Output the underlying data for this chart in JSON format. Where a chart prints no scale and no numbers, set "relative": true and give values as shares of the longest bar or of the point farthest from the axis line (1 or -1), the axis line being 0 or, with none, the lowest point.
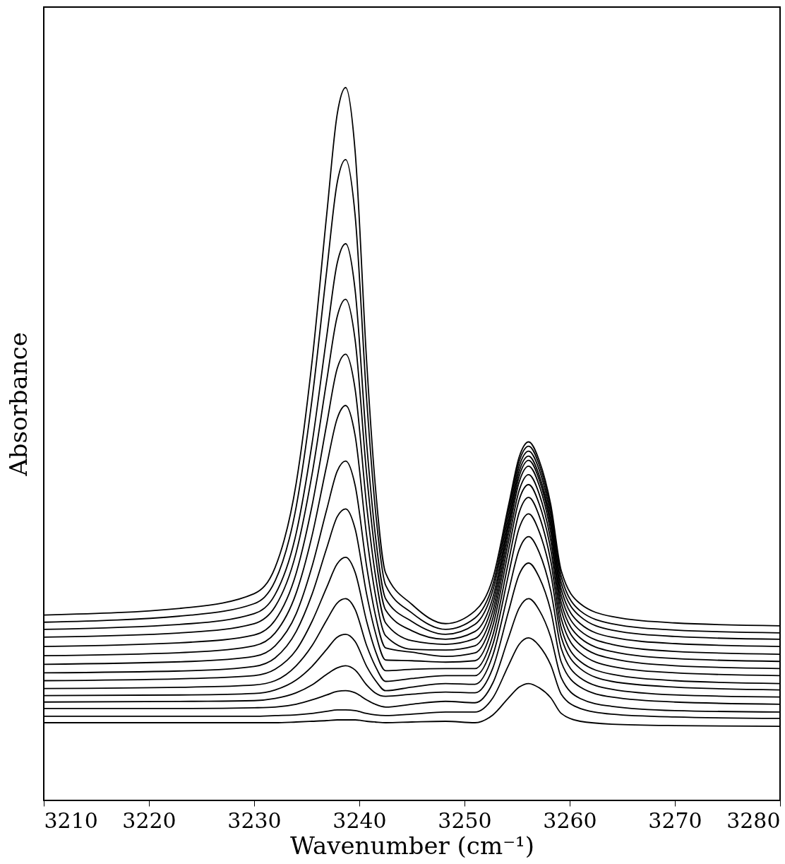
{
  "chart_data": {
    "type": "line",
    "relative": true,
    "xlabel": "Wavenumber (cm⁻¹)",
    "ylabel": "Absorbance",
    "xlim": [
      3210,
      3280
    ],
    "xticks": [
      3210,
      3220,
      3230,
      3240,
      3250,
      3260,
      3270,
      3280
    ],
    "grid": false,
    "legend": false,
    "marker": "none",
    "line_style": "solid",
    "x": [
      3210,
      3224,
      3230,
      3232,
      3234,
      3235.5,
      3236.9,
      3237.9,
      3238.7,
      3239.6,
      3240.7,
      3241.5,
      3242.5,
      3245,
      3248.2,
      3251,
      3252.7,
      3254.2,
      3255.2,
      3256.1,
      3257.1,
      3258.2,
      3259.2,
      3261,
      3264,
      3270,
      3280
    ],
    "series": [
      {
        "color": "#000000",
        "values": [
          0.26,
          0.271,
          0.29,
          0.327,
          0.445,
          0.615,
          0.822,
          0.963,
          1.0,
          0.911,
          0.615,
          0.445,
          0.319,
          0.275,
          0.248,
          0.266,
          0.312,
          0.415,
          0.482,
          0.503,
          0.477,
          0.415,
          0.322,
          0.276,
          0.258,
          0.249,
          0.245
        ]
      },
      {
        "color": "#000000",
        "values": [
          0.25,
          0.26,
          0.276,
          0.308,
          0.412,
          0.562,
          0.743,
          0.867,
          0.899,
          0.821,
          0.562,
          0.412,
          0.302,
          0.263,
          0.24,
          0.256,
          0.303,
          0.408,
          0.476,
          0.497,
          0.471,
          0.408,
          0.314,
          0.266,
          0.248,
          0.239,
          0.235
        ]
      },
      {
        "color": "#000000",
        "values": [
          0.24,
          0.248,
          0.262,
          0.289,
          0.375,
          0.5,
          0.651,
          0.754,
          0.781,
          0.716,
          0.5,
          0.375,
          0.283,
          0.251,
          0.233,
          0.247,
          0.295,
          0.4,
          0.469,
          0.49,
          0.464,
          0.4,
          0.305,
          0.258,
          0.239,
          0.23,
          0.226
        ]
      },
      {
        "color": "#000000",
        "values": [
          0.229,
          0.236,
          0.248,
          0.272,
          0.348,
          0.457,
          0.589,
          0.679,
          0.703,
          0.646,
          0.457,
          0.348,
          0.267,
          0.238,
          0.226,
          0.237,
          0.285,
          0.392,
          0.462,
          0.483,
          0.456,
          0.392,
          0.296,
          0.248,
          0.229,
          0.22,
          0.216
        ]
      },
      {
        "color": "#000000",
        "values": [
          0.216,
          0.222,
          0.232,
          0.253,
          0.319,
          0.413,
          0.528,
          0.606,
          0.626,
          0.577,
          0.413,
          0.319,
          0.249,
          0.224,
          0.219,
          0.227,
          0.276,
          0.385,
          0.455,
          0.477,
          0.45,
          0.385,
          0.287,
          0.238,
          0.219,
          0.209,
          0.205
        ]
      },
      {
        "color": "#000000",
        "values": [
          0.203,
          0.208,
          0.217,
          0.235,
          0.291,
          0.371,
          0.47,
          0.536,
          0.554,
          0.512,
          0.371,
          0.291,
          0.231,
          0.212,
          0.211,
          0.217,
          0.266,
          0.376,
          0.447,
          0.469,
          0.442,
          0.376,
          0.277,
          0.228,
          0.209,
          0.199,
          0.195
        ]
      },
      {
        "color": "#000000",
        "values": [
          0.191,
          0.195,
          0.202,
          0.217,
          0.262,
          0.328,
          0.408,
          0.462,
          0.476,
          0.442,
          0.328,
          0.262,
          0.214,
          0.208,
          0.202,
          0.207,
          0.256,
          0.365,
          0.435,
          0.457,
          0.43,
          0.365,
          0.267,
          0.218,
          0.199,
          0.189,
          0.185
        ]
      },
      {
        "color": "#000000",
        "values": [
          0.179,
          0.182,
          0.188,
          0.2,
          0.237,
          0.289,
          0.354,
          0.398,
          0.409,
          0.381,
          0.289,
          0.237,
          0.197,
          0.196,
          0.194,
          0.196,
          0.245,
          0.352,
          0.422,
          0.443,
          0.416,
          0.352,
          0.255,
          0.207,
          0.188,
          0.179,
          0.175
        ]
      },
      {
        "color": "#000000",
        "values": [
          0.168,
          0.171,
          0.175,
          0.184,
          0.211,
          0.251,
          0.299,
          0.332,
          0.341,
          0.32,
          0.251,
          0.211,
          0.182,
          0.184,
          0.185,
          0.185,
          0.232,
          0.336,
          0.404,
          0.425,
          0.399,
          0.336,
          0.242,
          0.195,
          0.177,
          0.168,
          0.164
        ]
      },
      {
        "color": "#000000",
        "values": [
          0.157,
          0.159,
          0.162,
          0.168,
          0.189,
          0.217,
          0.253,
          0.277,
          0.283,
          0.268,
          0.217,
          0.189,
          0.167,
          0.171,
          0.175,
          0.175,
          0.219,
          0.318,
          0.382,
          0.402,
          0.377,
          0.318,
          0.229,
          0.185,
          0.167,
          0.159,
          0.155
        ]
      },
      {
        "color": "#000000",
        "values": [
          0.147,
          0.148,
          0.15,
          0.155,
          0.169,
          0.188,
          0.212,
          0.229,
          0.233,
          0.223,
          0.188,
          0.169,
          0.154,
          0.159,
          0.164,
          0.163,
          0.204,
          0.294,
          0.352,
          0.37,
          0.348,
          0.294,
          0.213,
          0.172,
          0.156,
          0.148,
          0.145
        ]
      },
      {
        "color": "#000000",
        "values": [
          0.138,
          0.139,
          0.14,
          0.143,
          0.151,
          0.162,
          0.177,
          0.186,
          0.189,
          0.183,
          0.162,
          0.151,
          0.146,
          0.149,
          0.152,
          0.151,
          0.186,
          0.266,
          0.317,
          0.333,
          0.313,
          0.266,
          0.194,
          0.159,
          0.145,
          0.138,
          0.135
        ]
      },
      {
        "color": "#000000",
        "values": [
          0.129,
          0.129,
          0.13,
          0.131,
          0.135,
          0.141,
          0.148,
          0.153,
          0.154,
          0.151,
          0.141,
          0.135,
          0.131,
          0.135,
          0.139,
          0.137,
          0.165,
          0.229,
          0.27,
          0.283,
          0.267,
          0.229,
          0.172,
          0.143,
          0.132,
          0.126,
          0.124
        ]
      },
      {
        "color": "#000000",
        "values": [
          0.118,
          0.118,
          0.118,
          0.119,
          0.12,
          0.122,
          0.125,
          0.127,
          0.127,
          0.126,
          0.122,
          0.12,
          0.119,
          0.121,
          0.124,
          0.124,
          0.144,
          0.19,
          0.219,
          0.228,
          0.217,
          0.19,
          0.149,
          0.129,
          0.121,
          0.117,
          0.115
        ]
      },
      {
        "color": "#000000",
        "values": [
          0.109,
          0.109,
          0.109,
          0.109,
          0.11,
          0.111,
          0.112,
          0.113,
          0.113,
          0.113,
          0.111,
          0.11,
          0.109,
          0.11,
          0.111,
          0.109,
          0.12,
          0.144,
          0.159,
          0.164,
          0.158,
          0.144,
          0.122,
          0.111,
          0.107,
          0.105,
          0.104
        ]
      }
    ]
  }
}
